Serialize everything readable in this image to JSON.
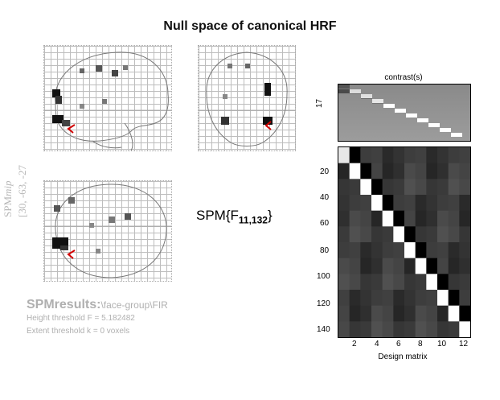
{
  "window": {
    "title": "Null space of canonical HRF"
  },
  "mip": {
    "label_spm": "SPM",
    "label_mip": "mip",
    "coordinates": "[30, -63, -27"
  },
  "statistic": {
    "prefix": "SPM{F",
    "subscript": "11,132",
    "suffix": "}"
  },
  "results": {
    "heading": "SPMresults:",
    "path": "\\face-group\\FIR",
    "height_threshold": "Height threshold F = 5.182482",
    "extent_threshold": "Extent threshold k = 0 voxels"
  },
  "contrast_panel": {
    "title": "contrast(s)",
    "ylabel": "17"
  },
  "design_matrix": {
    "xlabel": "Design matrix",
    "x_ticks": [
      "2",
      "4",
      "6",
      "8",
      "10",
      "12"
    ],
    "y_ticks": [
      "20",
      "40",
      "60",
      "80",
      "100",
      "120",
      "140"
    ],
    "columns": 12,
    "rows": 12,
    "diag_color": "#ffffff",
    "offdiag_color": "#000000"
  },
  "colors": {
    "mip_text": "#b8b8b8",
    "marker": "#d10000"
  }
}
